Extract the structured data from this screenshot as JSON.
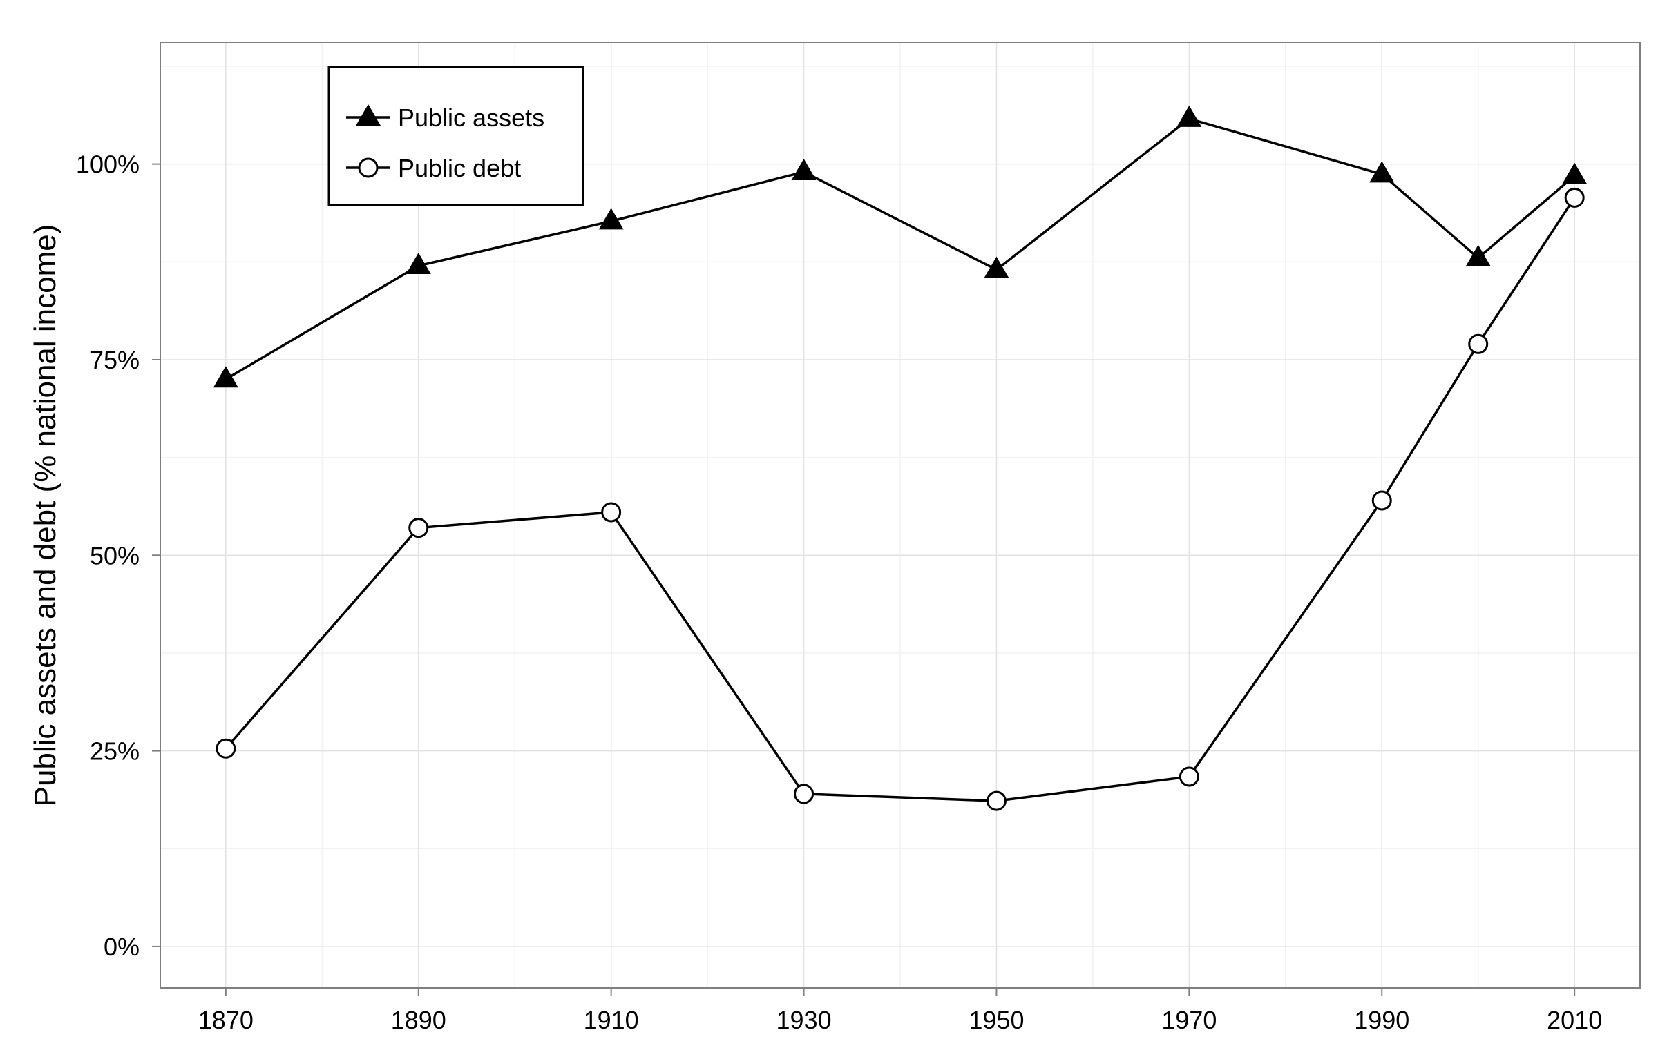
{
  "chart_data": {
    "type": "line",
    "title": "",
    "xlabel": "",
    "ylabel": "Public assets and debt (% national income)",
    "x": [
      1870,
      1890,
      1910,
      1930,
      1950,
      1970,
      1990,
      2000,
      2010
    ],
    "x_ticks": [
      1870,
      1890,
      1910,
      1930,
      1950,
      1970,
      1990,
      2010
    ],
    "x_tick_labels": [
      "1870",
      "1890",
      "1910",
      "1930",
      "1950",
      "1970",
      "1990",
      "2010"
    ],
    "xlim": [
      1863.2,
      2016.8
    ],
    "y_ticks": [
      0,
      25,
      50,
      75,
      100
    ],
    "y_tick_labels": [
      "0%",
      "25%",
      "50%",
      "75%",
      "100%"
    ],
    "ylim": [
      -5.3,
      115.5
    ],
    "grid": true,
    "legend_position": "top-left",
    "series": [
      {
        "name": "Public assets",
        "marker": "triangle-filled",
        "values": [
          72.5,
          87,
          92.7,
          99,
          86.5,
          105.8,
          98.7,
          88,
          98.5
        ]
      },
      {
        "name": "Public debt",
        "marker": "circle-open",
        "values": [
          25.3,
          53.5,
          55.5,
          19.5,
          18.6,
          21.7,
          57,
          77,
          95.7
        ]
      }
    ]
  }
}
